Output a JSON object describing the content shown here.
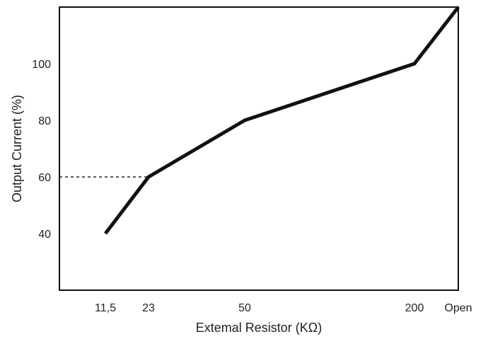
{
  "chart_data": {
    "type": "line",
    "title": "",
    "xlabel": "Extemal Resistor (KΩ)",
    "ylabel": "Output Current (%)",
    "x_categories": [
      "11,5",
      "23",
      "50",
      "200",
      "Open"
    ],
    "ylim": [
      20,
      120
    ],
    "yticks": [
      40,
      60,
      80,
      100
    ],
    "series": [
      {
        "values": [
          40,
          60,
          80,
          100,
          120
        ]
      }
    ],
    "annotations": [
      {
        "type": "dashed-reference",
        "x": "23",
        "y": 60
      }
    ],
    "grid": false,
    "legend": "none",
    "colors": {
      "line": "#111111",
      "axis": "#111111",
      "text": "#222222",
      "dash": "#222222"
    }
  }
}
